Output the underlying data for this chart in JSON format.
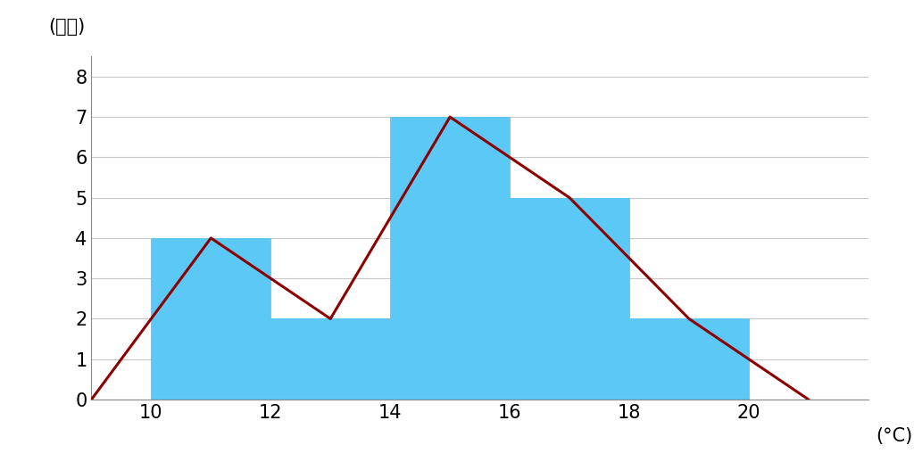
{
  "bin_edges": [
    10,
    12,
    14,
    16,
    18,
    20
  ],
  "frequencies": [
    4,
    2,
    7,
    5,
    2
  ],
  "bar_color": "#5BC8F5",
  "bar_edgecolor": "#5BC8F5",
  "bar_linewidth": 0.6,
  "line_color": "#8B0000",
  "line_width": 2.2,
  "poly_x": [
    9,
    11,
    13,
    15,
    17,
    19,
    21
  ],
  "poly_y": [
    0,
    4,
    2,
    7,
    5,
    2,
    0
  ],
  "xlim": [
    9,
    22
  ],
  "ylim": [
    0,
    8.5
  ],
  "yticks": [
    0,
    1,
    2,
    3,
    4,
    5,
    6,
    7,
    8
  ],
  "xticks": [
    10,
    12,
    14,
    16,
    18,
    20
  ],
  "xlabel": "(°C)",
  "ylabel": "(度数)",
  "xlabel_fontsize": 15,
  "ylabel_fontsize": 15,
  "tick_fontsize": 15,
  "background_color": "#ffffff",
  "grid_color": "#c8c8c8",
  "grid_linewidth": 0.8
}
